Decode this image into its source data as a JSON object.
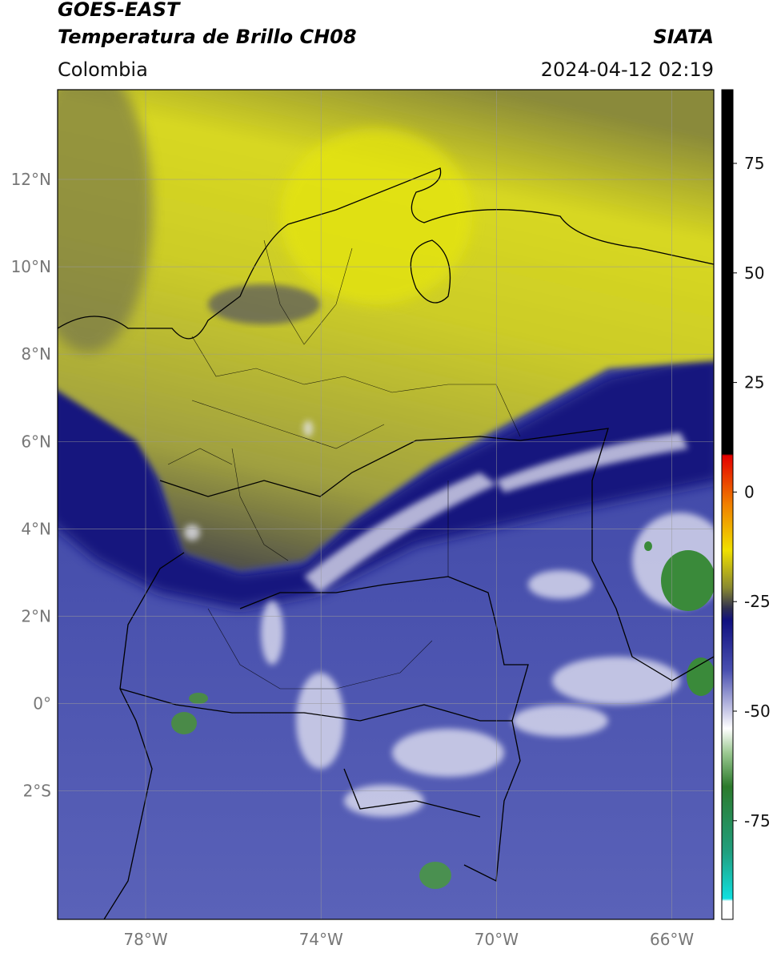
{
  "header": {
    "title": "GOES-EAST",
    "subtitle": "Temperatura de Brillo CH08",
    "source": "SIATA",
    "region": "Colombia",
    "datetime": "2024-04-12 02:19"
  },
  "map": {
    "lat_labels": [
      "12°N",
      "10°N",
      "8°N",
      "6°N",
      "4°N",
      "2°N",
      "0°",
      "2°S"
    ],
    "lon_labels": [
      "78°W",
      "74°W",
      "70°W",
      "66°W"
    ]
  },
  "colorbar": {
    "labels": [
      "75",
      "50",
      "25",
      "0",
      "-25",
      "-50",
      "-75"
    ]
  }
}
